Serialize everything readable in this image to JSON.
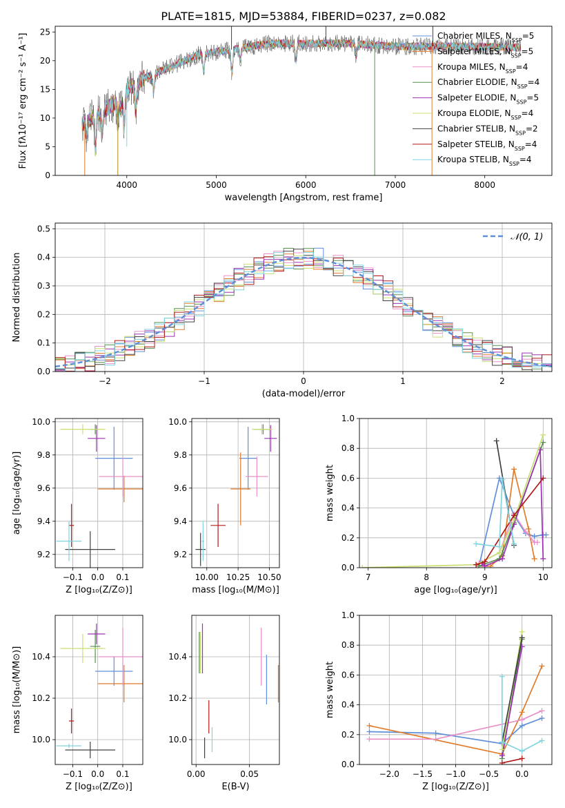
{
  "figure": {
    "title": "PLATE=1815, MJD=53884, FIBERID=0237, z=0.082"
  },
  "colors": {
    "series": [
      "#5f8fd9",
      "#e07b2a",
      "#e88fc8",
      "#5a8f50",
      "#9b30b0",
      "#c8e070",
      "#404040",
      "#b01818",
      "#7fd4e0"
    ],
    "model": "#b8860b",
    "grid": "#b0b0b0",
    "normal_curve": "#5f8fd9"
  },
  "legend_entries": [
    {
      "base": "Chabrier MILES, N",
      "sub": "SSP",
      "tail": "=5"
    },
    {
      "base": "Salpeter MILES, N",
      "sub": "SSP",
      "tail": "=5"
    },
    {
      "base": "Kroupa MILES, N",
      "sub": "SSP",
      "tail": "=4"
    },
    {
      "base": "Chabrier ELODIE, N",
      "sub": "SSP",
      "tail": "=4"
    },
    {
      "base": "Salpeter ELODIE, N",
      "sub": "SSP",
      "tail": "=5"
    },
    {
      "base": "Kroupa ELODIE, N",
      "sub": "SSP",
      "tail": "=4"
    },
    {
      "base": "Chabrier STELIB, N",
      "sub": "SSP",
      "tail": "=2"
    },
    {
      "base": "Salpeter STELIB, N",
      "sub": "SSP",
      "tail": "=4"
    },
    {
      "base": "Kroupa STELIB, N",
      "sub": "SSP",
      "tail": "=4"
    }
  ],
  "chart_data": [
    {
      "id": "spectrum",
      "type": "line",
      "xlabel": "wavelength [Angstrom, rest frame]",
      "ylabel": "Flux [fλ10⁻¹⁷ erg cm⁻² s⁻¹ A⁻¹]",
      "xlim": [
        3200,
        8750
      ],
      "ylim": [
        0,
        26
      ],
      "xticks": [
        4000,
        5000,
        6000,
        7000,
        8000
      ],
      "yticks": [
        0,
        5,
        10,
        15,
        20,
        25
      ],
      "grid": false,
      "legend": "right",
      "x_range": [
        3500,
        8400
      ],
      "continuum": [
        [
          3500,
          9
        ],
        [
          3700,
          11
        ],
        [
          3900,
          13
        ],
        [
          4000,
          15
        ],
        [
          4200,
          17
        ],
        [
          4500,
          19
        ],
        [
          4800,
          21
        ],
        [
          5200,
          22
        ],
        [
          5600,
          23
        ],
        [
          6000,
          23
        ],
        [
          6500,
          23
        ],
        [
          7000,
          22.5
        ],
        [
          7400,
          22.5
        ],
        [
          7800,
          22.5
        ],
        [
          8400,
          22.3
        ]
      ],
      "absorption_dips": [
        [
          3550,
          3
        ],
        [
          3650,
          6
        ],
        [
          3725,
          4
        ],
        [
          3900,
          4
        ],
        [
          3935,
          2
        ],
        [
          3970,
          6
        ],
        [
          4100,
          5
        ],
        [
          4300,
          3
        ],
        [
          4860,
          3
        ],
        [
          5175,
          4
        ],
        [
          5270,
          2
        ],
        [
          5890,
          3
        ],
        [
          6563,
          2
        ]
      ],
      "spikes": [
        [
          3530,
          0,
          "#e07b2a"
        ],
        [
          3900,
          0,
          "#b8860b"
        ],
        [
          4000,
          5,
          "#7fd4e0"
        ],
        [
          5170,
          26,
          "#404040"
        ],
        [
          6770,
          0,
          "#5a8f50"
        ],
        [
          7410,
          0,
          "#e07b2a"
        ],
        [
          7420,
          26,
          "#404040"
        ],
        [
          6225,
          26,
          "#404040"
        ]
      ]
    },
    {
      "id": "residuals",
      "type": "histogram",
      "xlabel": "(data-model)/error",
      "ylabel": "Normed distribution",
      "xlim": [
        -2.5,
        2.5
      ],
      "ylim": [
        0,
        0.52
      ],
      "xticks": [
        -2,
        -1,
        0,
        1,
        2
      ],
      "xticklabels": [
        "−2",
        "−1",
        "0",
        "1",
        "2"
      ],
      "yticks": [
        0.0,
        0.1,
        0.2,
        0.3,
        0.4,
        0.5
      ],
      "yticklabels": [
        "0.0",
        "0.1",
        "0.2",
        "0.3",
        "0.4",
        "0.5"
      ],
      "grid": true,
      "legend": "upper right",
      "curve_label": "𝒩(0, 1)",
      "bin_width": 0.1
    },
    {
      "id": "age-vs-Z",
      "type": "errorbar",
      "xlabel": "Z [log₁₀(Z/Z⊙)]",
      "ylabel": "age  [log₁₀(age/yr)]",
      "xlim": [
        -0.17,
        0.18
      ],
      "ylim": [
        9.12,
        10.02
      ],
      "xticks": [
        -0.1,
        0.0,
        0.1
      ],
      "xticklabels": [
        "−0.1",
        "0.0",
        "0.1"
      ],
      "yticks": [
        9.2,
        9.4,
        9.6,
        9.8,
        10.0
      ],
      "yticklabels": [
        "9.2",
        "9.4",
        "9.6",
        "9.8",
        "10.0"
      ],
      "grid": true,
      "points": [
        {
          "x": 0.065,
          "xerr": 0.075,
          "y": 9.78,
          "yerr": 0.19
        },
        {
          "x": 0.105,
          "xerr": 0.105,
          "y": 9.595,
          "yerr": 0.08
        },
        {
          "x": 0.1,
          "xerr": 0.095,
          "y": 9.67,
          "yerr": 0.12
        },
        {
          "x": -0.01,
          "xerr": 0.02,
          "y": 9.955,
          "yerr": 0.03
        },
        {
          "x": -0.005,
          "xerr": 0.035,
          "y": 9.9,
          "yerr": 0.08
        },
        {
          "x": -0.06,
          "xerr": 0.09,
          "y": 9.955,
          "yerr": 0.03
        },
        {
          "x": -0.03,
          "xerr": 0.1,
          "y": 9.23,
          "yerr": 0.11
        },
        {
          "x": -0.105,
          "xerr": 0.01,
          "y": 9.375,
          "yerr": 0.13
        },
        {
          "x": -0.115,
          "xerr": 0.05,
          "y": 9.28,
          "yerr": 0.12
        }
      ]
    },
    {
      "id": "age-vs-mass",
      "type": "errorbar",
      "xlabel": "mass [log₁₀(M/M⊙)]",
      "ylabel": "",
      "xlim": [
        9.88,
        10.58
      ],
      "ylim": [
        9.12,
        10.02
      ],
      "xticks": [
        10.0,
        10.25,
        10.5
      ],
      "xticklabels": [
        "10.00",
        "10.25",
        "10.50"
      ],
      "yticks": [
        9.2,
        9.4,
        9.6,
        9.8,
        10.0
      ],
      "yticklabels": [
        "9.2",
        "9.4",
        "9.6",
        "9.8",
        "10.0"
      ],
      "grid": true,
      "points": [
        {
          "x": 10.33,
          "xerr": 0.07,
          "y": 9.78,
          "yerr": 0.19
        },
        {
          "x": 10.27,
          "xerr": 0.08,
          "y": 9.595,
          "yerr": 0.22
        },
        {
          "x": 10.4,
          "xerr": 0.09,
          "y": 9.67,
          "yerr": 0.12
        },
        {
          "x": 10.45,
          "xerr": 0.07,
          "y": 9.955,
          "yerr": 0.03
        },
        {
          "x": 10.51,
          "xerr": 0.05,
          "y": 9.9,
          "yerr": 0.08
        },
        {
          "x": 10.44,
          "xerr": 0.08,
          "y": 9.955,
          "yerr": 0.03
        },
        {
          "x": 9.95,
          "xerr": 0.04,
          "y": 9.23,
          "yerr": 0.1
        },
        {
          "x": 10.09,
          "xerr": 0.06,
          "y": 9.375,
          "yerr": 0.13
        },
        {
          "x": 9.97,
          "xerr": 0.01,
          "y": 9.28,
          "yerr": 0.12
        }
      ]
    },
    {
      "id": "massweight-vs-age",
      "type": "line",
      "xlabel": "age  [log₁₀(age/yr)]",
      "ylabel": "mass weight",
      "xlim": [
        6.85,
        10.15
      ],
      "ylim": [
        0,
        1.0
      ],
      "xticks": [
        7,
        8,
        9,
        10
      ],
      "yticks": [
        0.0,
        0.2,
        0.4,
        0.6,
        0.8,
        1.0
      ],
      "yticklabels": [
        "0.0",
        "0.2",
        "0.4",
        "0.6",
        "0.8",
        "1.0"
      ],
      "grid": true,
      "series": [
        {
          "x": [
            8.9,
            9.25,
            9.5,
            9.7,
            9.85,
            10.0,
            10.05
          ],
          "y": [
            0.01,
            0.6,
            0.35,
            0.23,
            0.21,
            0.22,
            0.22
          ]
        },
        {
          "x": [
            8.9,
            9.1,
            9.3,
            9.5,
            9.75,
            9.85
          ],
          "y": [
            0.01,
            0.01,
            0.08,
            0.66,
            0.26,
            0.06
          ]
        },
        {
          "x": [
            8.9,
            9.25,
            9.5,
            9.7,
            9.85,
            9.9
          ],
          "y": [
            0.03,
            0.1,
            0.36,
            0.24,
            0.17,
            0.17
          ]
        },
        {
          "x": [
            8.9,
            9.25,
            9.3,
            9.5,
            10.0
          ],
          "y": [
            0.01,
            0.06,
            0.1,
            0.3,
            0.84
          ]
        },
        {
          "x": [
            8.95,
            9.0,
            9.3,
            9.5,
            9.95,
            10.0
          ],
          "y": [
            0.03,
            0.01,
            0.06,
            0.29,
            0.79,
            0.06
          ]
        },
        {
          "x": [
            6.9,
            8.85,
            9.25,
            9.5,
            10.0
          ],
          "y": [
            0.0,
            0.02,
            0.1,
            0.32,
            0.89
          ]
        },
        {
          "x": [
            9.2,
            9.5
          ],
          "y": [
            0.85,
            0.15
          ]
        },
        {
          "x": [
            8.85,
            9.0,
            9.5,
            10.0
          ],
          "y": [
            0.02,
            0.04,
            0.35,
            0.6
          ]
        },
        {
          "x": [
            8.85,
            9.25,
            9.3,
            9.5
          ],
          "y": [
            0.16,
            0.14,
            0.59,
            0.16
          ]
        }
      ]
    },
    {
      "id": "mass-vs-Z",
      "type": "errorbar",
      "xlabel": "Z [log₁₀(Z/Z⊙)]",
      "ylabel": "mass [log₁₀(M/M⊙)]",
      "xlim": [
        -0.17,
        0.18
      ],
      "ylim": [
        9.88,
        10.6
      ],
      "xticks": [
        -0.1,
        0.0,
        0.1
      ],
      "xticklabels": [
        "−0.1",
        "0.0",
        "0.1"
      ],
      "yticks": [
        10.0,
        10.2,
        10.4
      ],
      "yticklabels": [
        "10.0",
        "10.2",
        "10.4"
      ],
      "grid": true,
      "points": [
        {
          "x": 0.065,
          "xerr": 0.075,
          "y": 10.33,
          "yerr": 0.07
        },
        {
          "x": 0.105,
          "xerr": 0.105,
          "y": 10.27,
          "yerr": 0.09
        },
        {
          "x": 0.1,
          "xerr": 0.095,
          "y": 10.4,
          "yerr": 0.14
        },
        {
          "x": -0.01,
          "xerr": 0.02,
          "y": 10.45,
          "yerr": 0.08
        },
        {
          "x": -0.005,
          "xerr": 0.035,
          "y": 10.51,
          "yerr": 0.05
        },
        {
          "x": -0.06,
          "xerr": 0.09,
          "y": 10.44,
          "yerr": 0.07
        },
        {
          "x": -0.03,
          "xerr": 0.1,
          "y": 9.95,
          "yerr": 0.04
        },
        {
          "x": -0.105,
          "xerr": 0.01,
          "y": 10.09,
          "yerr": 0.06
        },
        {
          "x": -0.115,
          "xerr": 0.05,
          "y": 9.97,
          "yerr": 0.01
        }
      ]
    },
    {
      "id": "mass-vs-ebv",
      "type": "errorbar",
      "xlabel": "E(B-V)",
      "ylabel": "",
      "xlim": [
        -0.004,
        0.078
      ],
      "ylim": [
        9.88,
        10.6
      ],
      "xticks": [
        0.0,
        0.05
      ],
      "xticklabels": [
        "0.00",
        "0.05"
      ],
      "yticks": [
        10.0,
        10.2,
        10.4
      ],
      "yticklabels": [
        "10.0",
        "10.2",
        "10.4"
      ],
      "grid": true,
      "points": [
        {
          "x": 0.066,
          "xerr": 0,
          "y": 10.29,
          "yerr": 0.12
        },
        {
          "x": 0.077,
          "xerr": 0,
          "y": 10.27,
          "yerr": 0.09
        },
        {
          "x": 0.061,
          "xerr": 0,
          "y": 10.4,
          "yerr": 0.14
        },
        {
          "x": 0.003,
          "xerr": 0,
          "y": 10.42,
          "yerr": 0.1
        },
        {
          "x": 0.006,
          "xerr": 0,
          "y": 10.44,
          "yerr": 0.12
        },
        {
          "x": 0.004,
          "xerr": 0,
          "y": 10.42,
          "yerr": 0.1
        },
        {
          "x": 0.008,
          "xerr": 0,
          "y": 9.96,
          "yerr": 0.05
        },
        {
          "x": 0.012,
          "xerr": 0,
          "y": 10.11,
          "yerr": 0.08
        },
        {
          "x": 0.015,
          "xerr": 0,
          "y": 10.0,
          "yerr": 0.06
        }
      ]
    },
    {
      "id": "massweight-vs-Z",
      "type": "line",
      "xlabel": "Z [log₁₀(Z/Z⊙)]",
      "ylabel": "mass weight",
      "xlim": [
        -2.45,
        0.45
      ],
      "ylim": [
        0,
        1.0
      ],
      "xticks": [
        -2.0,
        -1.5,
        -1.0,
        -0.5,
        0.0
      ],
      "xticklabels": [
        "−2.0",
        "−1.5",
        "−1.0",
        "−0.5",
        "0.0"
      ],
      "yticks": [
        0.0,
        0.2,
        0.4,
        0.6,
        0.8,
        1.0
      ],
      "yticklabels": [
        "0.0",
        "0.2",
        "0.4",
        "0.6",
        "0.8",
        "1.0"
      ],
      "grid": true,
      "series": [
        {
          "x": [
            -2.3,
            -1.3,
            -0.3,
            0.0,
            0.3
          ],
          "y": [
            0.22,
            0.21,
            0.14,
            0.26,
            0.31
          ]
        },
        {
          "x": [
            -2.3,
            -0.3,
            0.0,
            0.3
          ],
          "y": [
            0.26,
            0.07,
            0.35,
            0.66
          ]
        },
        {
          "x": [
            -2.3,
            -1.3,
            0.0,
            0.3
          ],
          "y": [
            0.17,
            0.17,
            0.3,
            0.36
          ]
        },
        {
          "x": [
            -0.3,
            0.0
          ],
          "y": [
            0.04,
            0.84
          ]
        },
        {
          "x": [
            -0.3,
            0.0
          ],
          "y": [
            0.06,
            0.79
          ]
        },
        {
          "x": [
            -0.3,
            0.0
          ],
          "y": [
            0.1,
            0.89
          ]
        },
        {
          "x": [
            -0.3,
            0.0
          ],
          "y": [
            0.15,
            0.85
          ]
        },
        {
          "x": [
            -0.3,
            0.0
          ],
          "y": [
            0.01,
            0.04
          ]
        },
        {
          "x": [
            -0.3,
            -0.3,
            0.0,
            0.3
          ],
          "y": [
            0.59,
            0.15,
            0.09,
            0.16
          ]
        }
      ]
    }
  ]
}
